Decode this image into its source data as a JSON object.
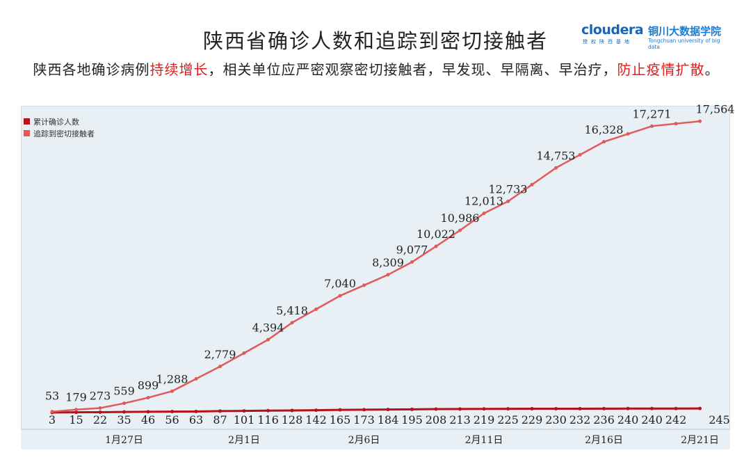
{
  "header": {
    "title": "陕西省确诊人数和追踪到密切接触者",
    "subtitle_parts": [
      {
        "text": "陕西各地确诊病例",
        "highlight": false
      },
      {
        "text": "持续增长",
        "highlight": true
      },
      {
        "text": "，相关单位应严密观察密切接触者，早发现、早隔离、早治疗，",
        "highlight": false
      },
      {
        "text": "防止疫情扩散",
        "highlight": true
      },
      {
        "text": "。",
        "highlight": false
      }
    ]
  },
  "logo": {
    "brand": "cloudera",
    "brand_sub": "授权陕西基地",
    "school": "铜川大数据学院",
    "school_en": "Tongchuan university of big data"
  },
  "colors": {
    "confirmed": "#b5121b",
    "contacts": "#e05a5a",
    "plot_bg": "#e8eff5",
    "highlight": "#e01b1b",
    "logo": "#1565b8"
  },
  "chart_data": {
    "type": "line",
    "title": "陕西省确诊人数和追踪到密切接触者",
    "legend_position": "top-left",
    "grid": false,
    "ylim": [
      0,
      18500
    ],
    "x_ticks": [
      {
        "index": 3,
        "label": "1月27日"
      },
      {
        "index": 8,
        "label": "2月1日"
      },
      {
        "index": 13,
        "label": "2月6日"
      },
      {
        "index": 18,
        "label": "2月11日"
      },
      {
        "index": 23,
        "label": "2月16日"
      },
      {
        "index": 27,
        "label": "2月21日"
      }
    ],
    "series": [
      {
        "name": "累计确诊人数",
        "color": "#b5121b",
        "values": [
          3,
          15,
          22,
          35,
          46,
          56,
          63,
          87,
          101,
          116,
          128,
          142,
          165,
          173,
          184,
          195,
          208,
          213,
          219,
          225,
          229,
          230,
          232,
          236,
          240,
          240,
          242,
          245
        ]
      },
      {
        "name": "追踪到密切接触者",
        "color": "#e05a5a",
        "values": [
          53,
          179,
          273,
          559,
          899,
          1288,
          null,
          2779,
          null,
          4394,
          5418,
          null,
          7040,
          null,
          8309,
          9077,
          10022,
          10986,
          12013,
          12733,
          null,
          14753,
          null,
          16328,
          null,
          17271,
          null,
          17564
        ]
      }
    ]
  }
}
